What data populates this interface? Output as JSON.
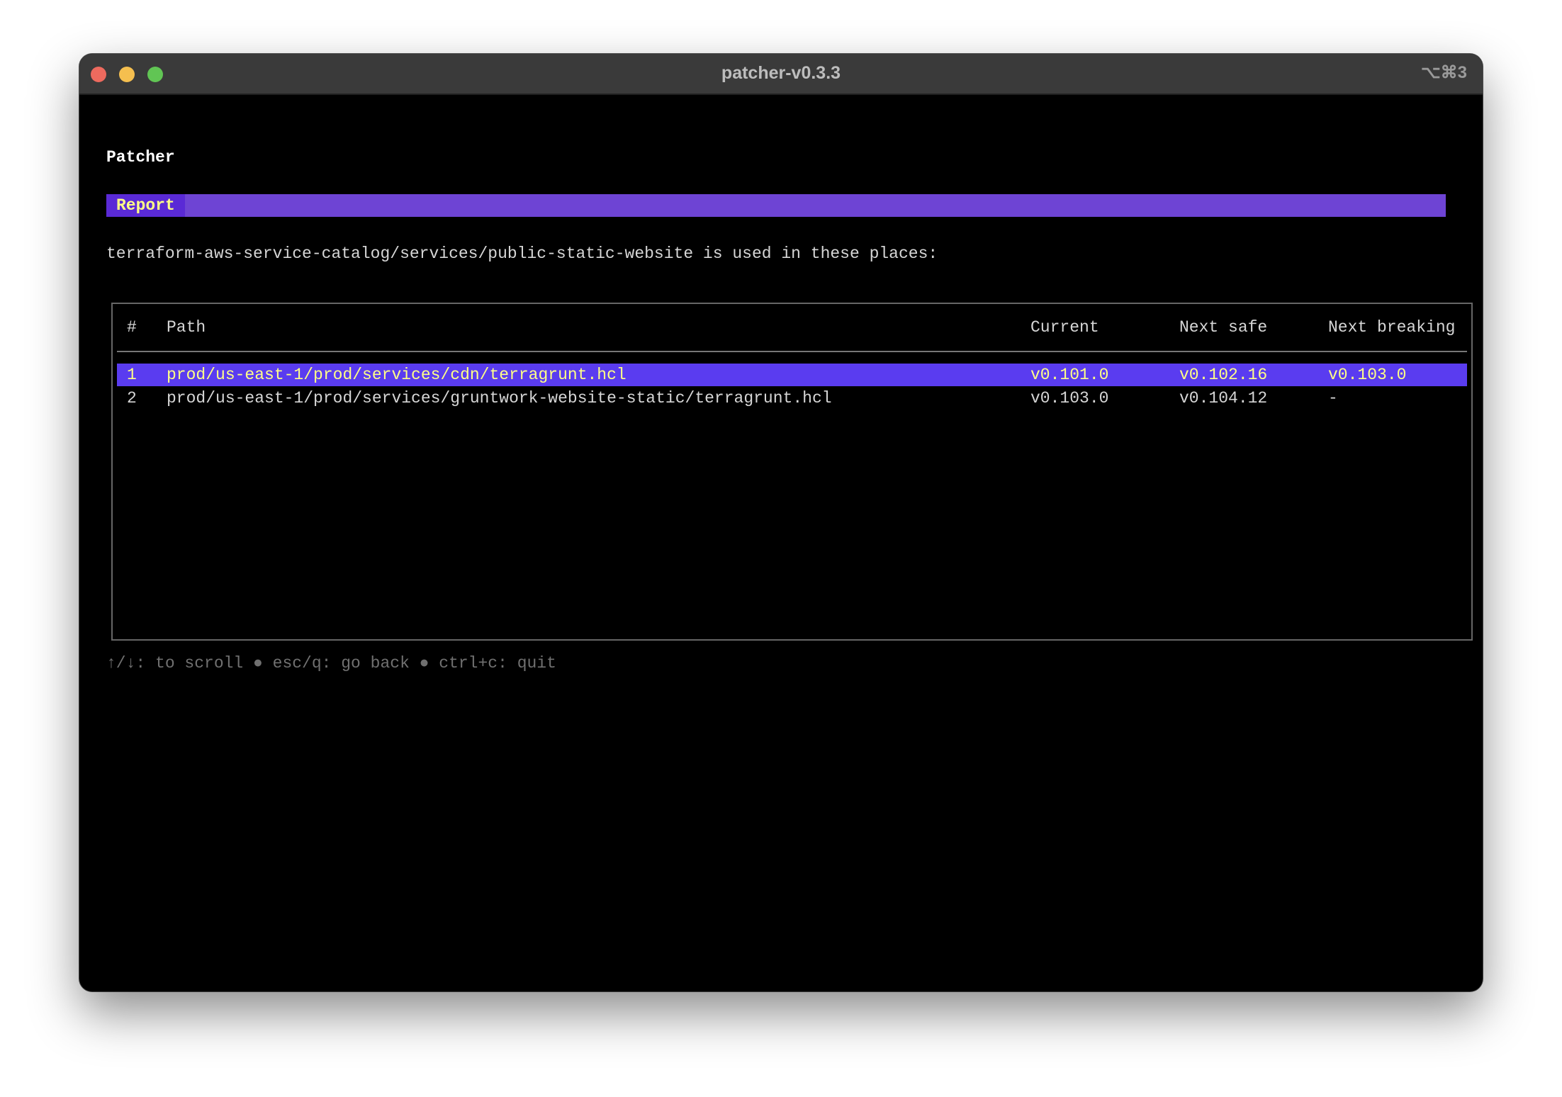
{
  "window": {
    "title": "patcher-v0.3.3",
    "shortcut": "⌥⌘3",
    "traffic_lights": {
      "close": "#ed6a5e",
      "minimize": "#f5bf4f",
      "zoom": "#61c554"
    }
  },
  "app": {
    "name": "Patcher",
    "tab": "Report",
    "description": "terraform-aws-service-catalog/services/public-static-website is used in these places:"
  },
  "table": {
    "columns": [
      "#",
      "Path",
      "Current",
      "Next safe",
      "Next breaking"
    ],
    "rows": [
      {
        "num": "1",
        "path": "prod/us-east-1/prod/services/cdn/terragrunt.hcl",
        "current": "v0.101.0",
        "next_safe": "v0.102.16",
        "next_breaking": "v0.103.0",
        "selected": true
      },
      {
        "num": "2",
        "path": "prod/us-east-1/prod/services/gruntwork-website-static/terragrunt.hcl",
        "current": "v0.103.0",
        "next_safe": "v0.104.12",
        "next_breaking": "-",
        "selected": false
      }
    ]
  },
  "help": "↑/↓: to scroll ● esc/q: go back ● ctrl+c: quit",
  "colors": {
    "accent_bar": "#6e44d4",
    "tab_bg": "#5a2ad6",
    "selected_row": "#5a3cf0",
    "highlight_text": "#ffff87"
  }
}
